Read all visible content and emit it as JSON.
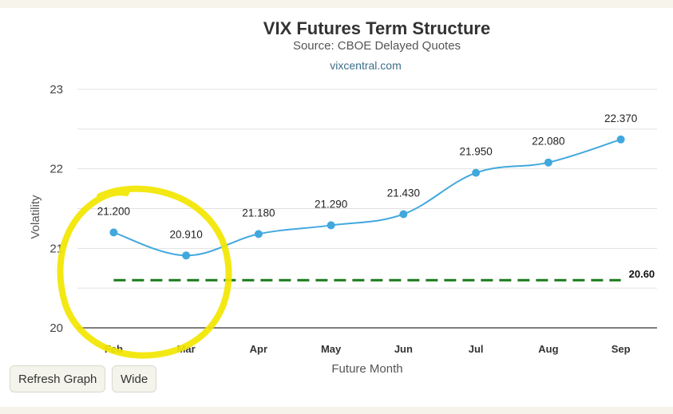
{
  "buttons": {
    "refresh_label": "Refresh Graph",
    "wide_label": "Wide"
  },
  "colors": {
    "series": "#41a8de",
    "reference": "#1a7a1a",
    "highlight": "#f2e600",
    "grid": "#e1e1e1",
    "axis": "#333333"
  },
  "chart_data": {
    "type": "line",
    "title": "VIX Futures Term Structure",
    "subtitle": "Source: CBOE Delayed Quotes",
    "credit": "vixcentral.com",
    "xlabel": "Future Month",
    "ylabel": "Volatility",
    "categories": [
      "Feb",
      "Mar",
      "Apr",
      "May",
      "Jun",
      "Jul",
      "Aug",
      "Sep"
    ],
    "series": [
      {
        "values": [
          21.2,
          20.91,
          21.18,
          21.29,
          21.43,
          21.95,
          22.08,
          22.37
        ],
        "labels": [
          "21.200",
          "20.910",
          "21.180",
          "21.290",
          "21.430",
          "21.950",
          "22.080",
          "22.370"
        ]
      }
    ],
    "reference_line": {
      "value": 20.6,
      "label": "20.60",
      "style": "dashed"
    },
    "ylim": [
      20,
      23
    ],
    "yticks": [
      "20",
      "21",
      "22",
      "23"
    ],
    "grid": true,
    "legend": "none",
    "annotation": "yellow hand-drawn circle around Feb and Mar"
  }
}
